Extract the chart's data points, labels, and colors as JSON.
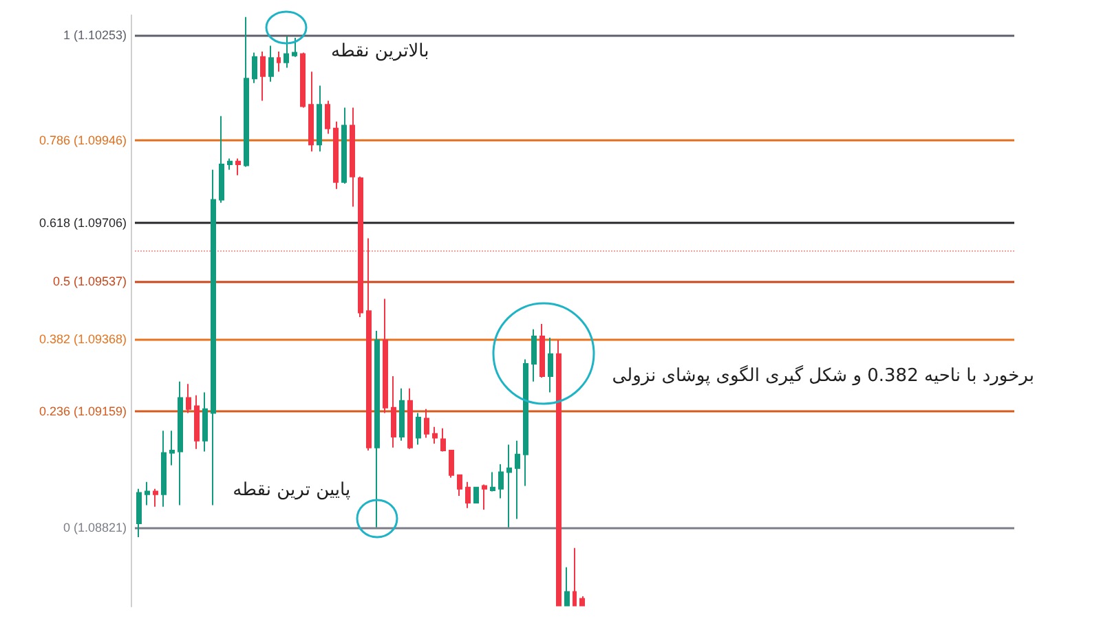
{
  "chart_data": {
    "type": "candlestick",
    "categories": [
      null,
      null,
      null,
      null,
      null,
      null,
      null,
      null,
      null,
      null,
      null,
      null,
      null,
      null,
      null,
      null,
      null,
      null,
      null,
      null,
      null,
      null,
      null,
      null,
      null,
      null,
      null,
      null,
      null,
      null,
      null,
      null,
      null,
      null,
      null,
      null,
      null,
      null,
      null,
      null,
      null,
      null,
      null,
      null,
      null,
      null,
      null,
      null,
      null,
      null,
      null,
      null,
      null,
      null,
      null
    ],
    "ohlc": [
      [
        0.008,
        0.078,
        -0.02,
        0.07
      ],
      [
        0.067,
        0.092,
        0.045,
        0.073
      ],
      [
        0.073,
        0.078,
        0.042,
        0.067
      ],
      [
        0.067,
        0.196,
        0.042,
        0.151
      ],
      [
        0.151,
        0.196,
        0.126,
        0.156
      ],
      [
        0.154,
        0.296,
        0.045,
        0.263
      ],
      [
        0.263,
        0.291,
        0.232,
        0.24
      ],
      [
        0.246,
        0.268,
        0.159,
        0.176
      ],
      [
        0.176,
        0.274,
        0.154,
        0.24
      ],
      [
        0.232,
        0.726,
        0.045,
        0.665
      ],
      [
        0.665,
        0.835,
        0.659,
        0.737
      ],
      [
        0.737,
        0.749,
        0.726,
        0.743
      ],
      [
        0.743,
        0.749,
        0.715,
        0.737
      ],
      [
        0.735,
        1.036,
        0.732,
        0.911
      ],
      [
        0.911,
        0.964,
        0.902,
        0.955
      ],
      [
        0.955,
        0.966,
        0.866,
        0.916
      ],
      [
        0.916,
        0.978,
        0.905,
        0.953
      ],
      [
        0.953,
        0.966,
        0.925,
        0.944
      ],
      [
        0.944,
        0.997,
        0.933,
        0.961
      ],
      [
        0.958,
        0.994,
        0.955,
        0.964
      ],
      [
        0.961,
        0.964,
        0.852,
        0.855
      ],
      [
        0.858,
        0.925,
        0.763,
        0.777
      ],
      [
        0.777,
        0.897,
        0.763,
        0.858
      ],
      [
        0.858,
        0.866,
        0.799,
        0.81
      ],
      [
        0.81,
        0.824,
        0.687,
        0.701
      ],
      [
        0.701,
        0.852,
        0.698,
        0.816
      ],
      [
        0.816,
        0.852,
        0.651,
        0.712
      ],
      [
        0.709,
        0.712,
        0.427,
        0.436
      ],
      [
        0.439,
        0.587,
        0.156,
        0.162
      ],
      [
        0.162,
        0.399,
        0,
        0.38
      ],
      [
        0.38,
        0.464,
        0.232,
        0.243
      ],
      [
        0.243,
        0.307,
        0.162,
        0.184
      ],
      [
        0.184,
        0.282,
        0.176,
        0.257
      ],
      [
        0.257,
        0.282,
        0.159,
        0.162
      ],
      [
        0.182,
        0.232,
        0.168,
        0.223
      ],
      [
        0.221,
        0.24,
        0.182,
        0.19
      ],
      [
        0.19,
        0.204,
        0.17,
        0.182
      ],
      [
        0.179,
        0.201,
        0.154,
        0.156
      ],
      [
        0.156,
        0.156,
        0.101,
        0.106
      ],
      [
        0.106,
        0.106,
        0.064,
        0.078
      ],
      [
        0.081,
        0.092,
        0.039,
        0.05
      ],
      [
        0.05,
        0.081,
        0.05,
        0.081
      ],
      [
        0.084,
        0.087,
        0.036,
        0.078
      ],
      [
        0.075,
        0.112,
        0.073,
        0.081
      ],
      [
        0.078,
        0.128,
        0.059,
        0.112
      ],
      [
        0.112,
        0.168,
        0,
        0.12
      ],
      [
        0.12,
        0.176,
        0.017,
        0.148
      ],
      [
        0.148,
        0.341,
        0.084,
        0.332
      ],
      [
        0.332,
        0.402,
        0.296,
        0.388
      ],
      [
        0.388,
        0.413,
        0.304,
        0.307
      ],
      [
        0.307,
        0.385,
        0.274,
        0.352
      ],
      [
        0.352,
        0.38,
        -0.159,
        -0.159
      ],
      [
        -0.159,
        -0.081,
        -0.159,
        -0.131
      ],
      [
        -0.131,
        -0.042,
        -0.159,
        -0.159
      ],
      [
        -0.145,
        -0.14,
        -0.159,
        -0.159
      ]
    ],
    "colors": [
      "#129a7e",
      "#129a7e",
      "#f23645",
      "#129a7e",
      "#129a7e",
      "#129a7e",
      "#f23645",
      "#f23645",
      "#129a7e",
      "#129a7e",
      "#129a7e",
      "#129a7e",
      "#f23645",
      "#129a7e",
      "#129a7e",
      "#f23645",
      "#129a7e",
      "#f23645",
      "#129a7e",
      "#129a7e",
      "#f23645",
      "#f23645",
      "#129a7e",
      "#f23645",
      "#f23645",
      "#129a7e",
      "#f23645",
      "#f23645",
      "#f23645",
      "#129a7e",
      "#f23645",
      "#f23645",
      "#129a7e",
      "#f23645",
      "#129a7e",
      "#f23645",
      "#f23645",
      "#f23645",
      "#f23645",
      "#f23645",
      "#f23645",
      "#129a7e",
      "#f23645",
      "#129a7e",
      "#129a7e",
      "#129a7e",
      "#129a7e",
      "#129a7e",
      "#129a7e",
      "#f23645",
      "#129a7e",
      "#f23645",
      "#129a7e",
      "#f23645",
      "#f23645"
    ],
    "ylim": [
      -0.161,
      1.04
    ],
    "tick_labels": false,
    "ref_lines": [
      {
        "axis": "y",
        "value": 1,
        "label": "1 (1.10253)",
        "color": "#5d606b"
      },
      {
        "axis": "y",
        "value": 0.786,
        "label": "0.786 (1.09946)",
        "color": "#e0701f"
      },
      {
        "axis": "y",
        "value": 0.618,
        "label": "0.618 (1.09706)",
        "color": "#26262b"
      },
      {
        "axis": "y",
        "value": 0.561,
        "color": "#f2a0a0",
        "line_style": "dotted"
      },
      {
        "axis": "y",
        "value": 0.5,
        "label": "0.5 (1.09537)",
        "color": "#c8461a"
      },
      {
        "axis": "y",
        "value": 0.382,
        "label": "0.382 (1.09368)",
        "color": "#e8731f"
      },
      {
        "axis": "y",
        "value": 0.236,
        "label": "0.236 (1.09159)",
        "color": "#d55a1d"
      },
      {
        "axis": "y",
        "value": 0,
        "label": "0 (1.08821)",
        "color": "#7b7e88"
      }
    ],
    "annotations": [
      {
        "text": "بالاترین نقطه",
        "y": 1
      },
      {
        "text": "پایین ترین نقطه",
        "y": 0
      },
      {
        "text": "برخورد با ناحیه 0.382 و شکل گیری الگوی پوشای نزولی",
        "y": 0.382
      }
    ]
  }
}
